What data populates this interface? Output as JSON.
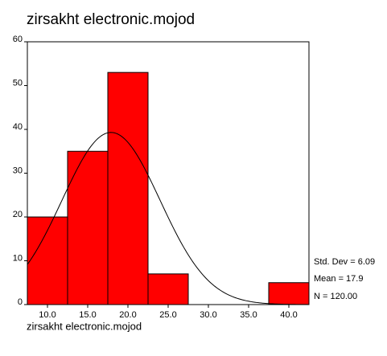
{
  "chart_data": {
    "type": "histogram",
    "title": "zirsakht electronic.mojod",
    "x_label": "zirsakht electronic.mojod",
    "bins": [
      7.5,
      12.5,
      17.5,
      22.5,
      27.5,
      32.5,
      37.5,
      42.5
    ],
    "values": [
      20,
      35,
      53,
      7,
      0,
      0,
      5
    ],
    "color": "#ff0000",
    "xlim": [
      7.5,
      42.5
    ],
    "ylim": [
      0,
      60
    ],
    "xticks": [
      {
        "value": 10,
        "label": "10.0"
      },
      {
        "value": 15,
        "label": "15.0"
      },
      {
        "value": 20,
        "label": "20.0"
      },
      {
        "value": 25,
        "label": "25.0"
      },
      {
        "value": 30,
        "label": "30.0"
      },
      {
        "value": 35,
        "label": "35.0"
      },
      {
        "value": 40,
        "label": "40.0"
      }
    ],
    "yticks": [
      0,
      10,
      20,
      30,
      40,
      50,
      60
    ],
    "stats": {
      "std_dev": 6.09,
      "mean": 17.9,
      "n": 120
    },
    "stats_labels": {
      "std_dev": "Std. Dev = 6.09",
      "mean": "Mean = 17.9",
      "n": "N = 120.00"
    }
  }
}
